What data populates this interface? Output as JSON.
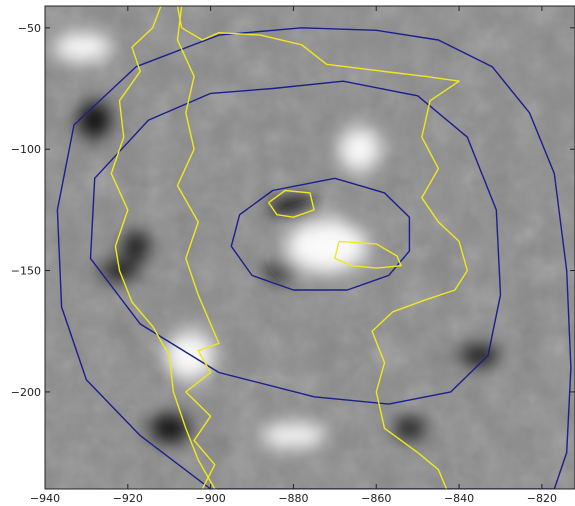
{
  "chart_data": {
    "type": "heatmap",
    "title": "",
    "xlabel": "",
    "ylabel": "",
    "xlim": [
      -940,
      -812
    ],
    "ylim": [
      -240,
      -41
    ],
    "xticks": [
      -940,
      -920,
      -900,
      -880,
      -860,
      -840,
      -820
    ],
    "yticks": [
      -50,
      -100,
      -150,
      -200
    ],
    "xtick_labels": [
      "−940",
      "−920",
      "−900",
      "−880",
      "−860",
      "−840",
      "−820"
    ],
    "ytick_labels": [
      "−50",
      "−100",
      "−150",
      "−200"
    ],
    "grid": false,
    "colormap": "grayscale",
    "features": [
      {
        "kind": "bright",
        "x": -931,
        "y": -58,
        "rx": 7,
        "ry": 6
      },
      {
        "kind": "dark",
        "x": -928,
        "y": -88,
        "rx": 4,
        "ry": 8
      },
      {
        "kind": "bright",
        "x": -864,
        "y": -100,
        "rx": 5,
        "ry": 9
      },
      {
        "kind": "bright",
        "x": -872,
        "y": -140,
        "rx": 10,
        "ry": 11
      },
      {
        "kind": "dark",
        "x": -880,
        "y": -124,
        "rx": 6,
        "ry": 4
      },
      {
        "kind": "dark",
        "x": -883,
        "y": -150,
        "rx": 4,
        "ry": 4
      },
      {
        "kind": "dark",
        "x": -918,
        "y": -140,
        "rx": 3,
        "ry": 6
      },
      {
        "kind": "dark",
        "x": -922,
        "y": -150,
        "rx": 5,
        "ry": 4
      },
      {
        "kind": "bright",
        "x": -905,
        "y": -185,
        "rx": 6,
        "ry": 10
      },
      {
        "kind": "dark",
        "x": -910,
        "y": -215,
        "rx": 5,
        "ry": 6
      },
      {
        "kind": "dark",
        "x": -852,
        "y": -215,
        "rx": 4,
        "ry": 4
      },
      {
        "kind": "bright",
        "x": -880,
        "y": -218,
        "rx": 8,
        "ry": 5
      },
      {
        "kind": "dark",
        "x": -835,
        "y": -185,
        "rx": 5,
        "ry": 4
      }
    ],
    "contours": [
      {
        "color": "#1a1f8c",
        "points": [
          [
            -878,
            -50
          ],
          [
            -860,
            -51
          ],
          [
            -845,
            -55
          ],
          [
            -832,
            -66
          ],
          [
            -823,
            -85
          ],
          [
            -817,
            -110
          ],
          [
            -814,
            -150
          ],
          [
            -813,
            -190
          ],
          [
            -814,
            -225
          ],
          [
            -817,
            -240
          ],
          [
            -900,
            -240
          ],
          [
            -917,
            -218
          ],
          [
            -930,
            -195
          ],
          [
            -936,
            -165
          ],
          [
            -937,
            -125
          ],
          [
            -933,
            -90
          ],
          [
            -918,
            -66
          ],
          [
            -898,
            -53
          ],
          [
            -878,
            -50
          ]
        ]
      },
      {
        "color": "#1a1f8c",
        "points": [
          [
            -885,
            -75
          ],
          [
            -868,
            -72
          ],
          [
            -850,
            -78
          ],
          [
            -838,
            -95
          ],
          [
            -831,
            -125
          ],
          [
            -830,
            -160
          ],
          [
            -833,
            -185
          ],
          [
            -842,
            -200
          ],
          [
            -857,
            -205
          ],
          [
            -875,
            -202
          ],
          [
            -898,
            -192
          ],
          [
            -917,
            -172
          ],
          [
            -929,
            -145
          ],
          [
            -928,
            -112
          ],
          [
            -915,
            -88
          ],
          [
            -900,
            -77
          ],
          [
            -885,
            -75
          ]
        ]
      },
      {
        "color": "#1a1f8c",
        "points": [
          [
            -870,
            -112
          ],
          [
            -858,
            -118
          ],
          [
            -852,
            -128
          ],
          [
            -852,
            -142
          ],
          [
            -857,
            -152
          ],
          [
            -867,
            -158
          ],
          [
            -880,
            -158
          ],
          [
            -890,
            -152
          ],
          [
            -895,
            -140
          ],
          [
            -893,
            -127
          ],
          [
            -885,
            -117
          ],
          [
            -870,
            -112
          ]
        ]
      },
      {
        "color": "#f0e81c",
        "points": [
          [
            -912,
            -41
          ],
          [
            -914,
            -50
          ],
          [
            -919,
            -58
          ],
          [
            -917,
            -68
          ],
          [
            -922,
            -80
          ],
          [
            -921,
            -95
          ],
          [
            -924,
            -110
          ],
          [
            -920,
            -125
          ],
          [
            -923,
            -140
          ],
          [
            -922,
            -150
          ],
          [
            -919,
            -163
          ],
          [
            -914,
            -173
          ],
          [
            -910,
            -185
          ],
          [
            -909,
            -200
          ],
          [
            -906,
            -215
          ],
          [
            -903,
            -228
          ],
          [
            -899,
            -240
          ]
        ]
      },
      {
        "color": "#f0e81c",
        "points": [
          [
            -908,
            -41
          ],
          [
            -907,
            -50
          ],
          [
            -902,
            -55
          ],
          [
            -898,
            -52
          ],
          [
            -888,
            -53
          ],
          [
            -878,
            -57
          ],
          [
            -872,
            -65
          ],
          [
            -858,
            -68
          ],
          [
            -848,
            -70
          ],
          [
            -840,
            -72
          ],
          [
            -847,
            -80
          ],
          [
            -849,
            -95
          ],
          [
            -845,
            -108
          ],
          [
            -849,
            -120
          ],
          [
            -845,
            -130
          ],
          [
            -840,
            -138
          ],
          [
            -838,
            -150
          ],
          [
            -841,
            -158
          ],
          [
            -848,
            -162
          ],
          [
            -856,
            -167
          ],
          [
            -861,
            -175
          ],
          [
            -858,
            -188
          ],
          [
            -860,
            -200
          ],
          [
            -858,
            -215
          ],
          [
            -850,
            -225
          ],
          [
            -845,
            -232
          ],
          [
            -843,
            -240
          ]
        ]
      },
      {
        "color": "#f0e81c",
        "points": [
          [
            -907,
            -41
          ],
          [
            -908,
            -55
          ],
          [
            -904,
            -70
          ],
          [
            -906,
            -85
          ],
          [
            -904,
            -100
          ],
          [
            -908,
            -115
          ],
          [
            -903,
            -130
          ],
          [
            -906,
            -145
          ],
          [
            -903,
            -160
          ],
          [
            -900,
            -172
          ],
          [
            -898,
            -180
          ],
          [
            -903,
            -183
          ],
          [
            -900,
            -192
          ],
          [
            -906,
            -200
          ],
          [
            -900,
            -210
          ],
          [
            -904,
            -220
          ],
          [
            -899,
            -230
          ],
          [
            -902,
            -240
          ]
        ]
      },
      {
        "color": "#f0e81c",
        "points": [
          [
            -886,
            -122
          ],
          [
            -882,
            -117
          ],
          [
            -876,
            -118
          ],
          [
            -875,
            -125
          ],
          [
            -880,
            -128
          ],
          [
            -884,
            -127
          ],
          [
            -886,
            -122
          ]
        ]
      },
      {
        "color": "#f0e81c",
        "points": [
          [
            -869,
            -138
          ],
          [
            -860,
            -139
          ],
          [
            -855,
            -144
          ],
          [
            -854,
            -148
          ],
          [
            -860,
            -149
          ],
          [
            -866,
            -148
          ],
          [
            -870,
            -145
          ],
          [
            -869,
            -138
          ]
        ]
      }
    ]
  }
}
